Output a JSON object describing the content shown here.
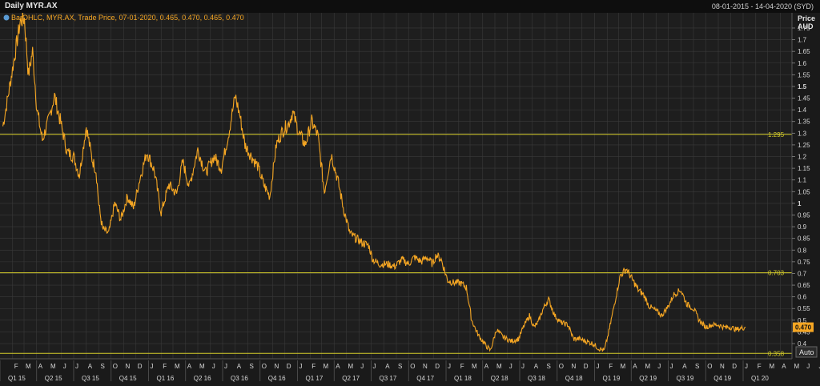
{
  "header": {
    "title": "Daily MYR.AX",
    "date_range": "08-01-2015 - 14-04-2020 (SYD)"
  },
  "legend": {
    "text": "BarOHLC, MYR.AX, Trade Price, 07-01-2020, 0.465, 0.470, 0.465, 0.470"
  },
  "axis": {
    "title_line1": "Price",
    "title_line2": "AUD",
    "auto_label": "Auto"
  },
  "colors": {
    "series": "#f5a623",
    "hline": "#d4cc2a",
    "grid": "#3a3a3a",
    "text": "#d8d8d8",
    "current_badge": "#f5a623"
  },
  "chart_data": {
    "type": "line",
    "ylabel": "Price AUD",
    "ylim": [
      0.335,
      1.815
    ],
    "yticks": [
      0.4,
      0.45,
      0.5,
      0.55,
      0.6,
      0.65,
      0.7,
      0.75,
      0.8,
      0.85,
      0.9,
      0.95,
      1,
      1.05,
      1.1,
      1.15,
      1.2,
      1.25,
      1.3,
      1.35,
      1.4,
      1.45,
      1.5,
      1.55,
      1.6,
      1.65,
      1.7,
      1.75
    ],
    "ytick_labels": [
      "0.4",
      "0.45",
      "0.5",
      "0.55",
      "0.6",
      "0.65",
      "0.7",
      "0.75",
      "0.8",
      "0.85",
      "0.9",
      "0.95",
      "1",
      "1.05",
      "1.1",
      "1.15",
      "1.2",
      "1.25",
      "1.3",
      "1.35",
      "1.4",
      "1.45",
      "1.5",
      "1.55",
      "1.6",
      "1.65",
      "1.7",
      "1.75"
    ],
    "x_range": [
      "2015-01-01",
      "2020-04-30"
    ],
    "months": [
      "F",
      "M",
      "A",
      "M",
      "J",
      "J",
      "A",
      "S",
      "O",
      "N",
      "D",
      "J",
      "F",
      "M",
      "A",
      "M",
      "J",
      "J",
      "A",
      "S",
      "O",
      "N",
      "D",
      "J",
      "F",
      "M",
      "A",
      "M",
      "J",
      "J",
      "A",
      "S",
      "O",
      "N",
      "D",
      "J",
      "F",
      "M",
      "A",
      "M",
      "J",
      "J",
      "A",
      "S",
      "O",
      "N",
      "D",
      "J",
      "F",
      "M",
      "A",
      "M",
      "J",
      "J",
      "A",
      "S",
      "O",
      "N",
      "D",
      "J",
      "F",
      "M",
      "A",
      "M",
      "J",
      "J",
      "A",
      "S",
      "O",
      "N",
      "D",
      "J",
      "F",
      "M",
      "A"
    ],
    "quarters": [
      "Q1 15",
      "Q2 15",
      "Q3 15",
      "Q4 15",
      "Q1 16",
      "Q2 16",
      "Q3 16",
      "Q4 16",
      "Q1 17",
      "Q2 17",
      "Q3 17",
      "Q4 17",
      "Q1 18",
      "Q2 18",
      "Q3 18",
      "Q4 18",
      "Q1 19",
      "Q2 19",
      "Q3 19",
      "Q4 19",
      "Q1 20"
    ],
    "series": [
      {
        "x": [
          "2015-01-08",
          "2015-01-20",
          "2015-02-05",
          "2015-02-20",
          "2015-03-02",
          "2015-03-12",
          "2015-03-22",
          "2015-04-02",
          "2015-04-15",
          "2015-05-01",
          "2015-05-15",
          "2015-06-01",
          "2015-06-15",
          "2015-07-01",
          "2015-07-15",
          "2015-08-01",
          "2015-08-15",
          "2015-08-25",
          "2015-09-01",
          "2015-09-10",
          "2015-09-25",
          "2015-10-10",
          "2015-10-25",
          "2015-11-10",
          "2015-11-25",
          "2015-12-10",
          "2015-12-28",
          "2016-01-15",
          "2016-02-01",
          "2016-02-20",
          "2016-03-10",
          "2016-03-25",
          "2016-04-10",
          "2016-05-01",
          "2016-05-20",
          "2016-06-10",
          "2016-06-28",
          "2016-07-15",
          "2016-08-01",
          "2016-08-12",
          "2016-08-25",
          "2016-09-10",
          "2016-09-25",
          "2016-10-10",
          "2016-10-25",
          "2016-11-10",
          "2016-11-25",
          "2016-12-10",
          "2016-12-20",
          "2017-01-05",
          "2017-01-20",
          "2017-02-05",
          "2017-02-20",
          "2017-03-08",
          "2017-03-25",
          "2017-04-10",
          "2017-04-25",
          "2017-05-10",
          "2017-05-25",
          "2017-06-10",
          "2017-06-25",
          "2017-07-05",
          "2017-07-20",
          "2017-08-10",
          "2017-08-28",
          "2017-09-15",
          "2017-10-01",
          "2017-10-15",
          "2017-11-01",
          "2017-11-15",
          "2017-11-29",
          "2017-12-08",
          "2017-12-20",
          "2018-01-05",
          "2018-01-20",
          "2018-02-05",
          "2018-02-20",
          "2018-03-05",
          "2018-03-20",
          "2018-04-05",
          "2018-04-20",
          "2018-05-05",
          "2018-05-20",
          "2018-06-10",
          "2018-06-28",
          "2018-07-10",
          "2018-07-25",
          "2018-08-05",
          "2018-08-15",
          "2018-08-28",
          "2018-09-10",
          "2018-09-25",
          "2018-10-10",
          "2018-10-28",
          "2018-11-10",
          "2018-11-25",
          "2018-12-10",
          "2018-12-28",
          "2019-01-10",
          "2019-01-25",
          "2019-02-05",
          "2019-02-20",
          "2019-03-05",
          "2019-03-20",
          "2019-04-05",
          "2019-04-18",
          "2019-05-01",
          "2019-05-15",
          "2019-06-01",
          "2019-06-15",
          "2019-07-01",
          "2019-07-15",
          "2019-08-01",
          "2019-08-15",
          "2019-09-01",
          "2019-09-15",
          "2019-10-01",
          "2019-10-15",
          "2019-11-01",
          "2019-11-15",
          "2019-12-01",
          "2019-12-15",
          "2020-01-07"
        ],
        "y": [
          1.33,
          1.45,
          1.62,
          1.78,
          1.79,
          1.55,
          1.65,
          1.4,
          1.27,
          1.36,
          1.46,
          1.33,
          1.22,
          1.2,
          1.12,
          1.33,
          1.19,
          1.14,
          0.99,
          0.89,
          0.87,
          1.0,
          0.93,
          1.03,
          0.98,
          1.1,
          1.22,
          1.14,
          0.96,
          1.08,
          1.04,
          1.18,
          1.07,
          1.23,
          1.13,
          1.2,
          1.15,
          1.29,
          1.46,
          1.38,
          1.25,
          1.2,
          1.16,
          1.08,
          1.03,
          1.25,
          1.31,
          1.34,
          1.39,
          1.3,
          1.25,
          1.35,
          1.29,
          1.05,
          1.21,
          1.1,
          0.97,
          0.87,
          0.85,
          0.83,
          0.82,
          0.76,
          0.74,
          0.74,
          0.73,
          0.76,
          0.74,
          0.77,
          0.75,
          0.77,
          0.74,
          0.78,
          0.76,
          0.67,
          0.66,
          0.66,
          0.64,
          0.5,
          0.44,
          0.4,
          0.37,
          0.46,
          0.43,
          0.41,
          0.42,
          0.47,
          0.52,
          0.47,
          0.49,
          0.55,
          0.59,
          0.52,
          0.49,
          0.48,
          0.42,
          0.42,
          0.41,
          0.4,
          0.38,
          0.37,
          0.45,
          0.58,
          0.69,
          0.72,
          0.67,
          0.63,
          0.61,
          0.56,
          0.54,
          0.52,
          0.56,
          0.61,
          0.63,
          0.57,
          0.55,
          0.5,
          0.47,
          0.48,
          0.48,
          0.47,
          0.47,
          0.46,
          0.47
        ]
      }
    ],
    "hlines": [
      {
        "value": 1.295,
        "label": "1.295"
      },
      {
        "value": 0.703,
        "label": "0.703"
      },
      {
        "value": 0.358,
        "label": "0.358"
      }
    ],
    "last_value": 0.47,
    "last_label": "0.470",
    "grid": true
  }
}
